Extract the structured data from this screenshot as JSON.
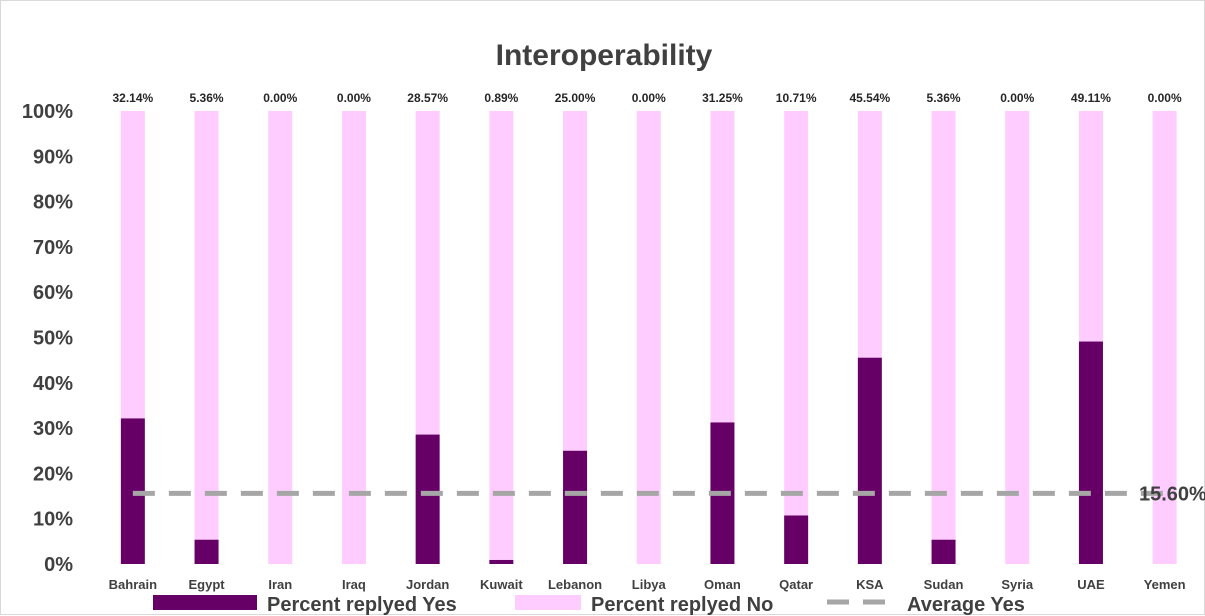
{
  "chart_data": {
    "type": "bar",
    "stacked": true,
    "title": "Interoperability",
    "categories": [
      "Bahrain",
      "Egypt",
      "Iran",
      "Iraq",
      "Jordan",
      "Kuwait",
      "Lebanon",
      "Libya",
      "Oman",
      "Qatar",
      "KSA",
      "Sudan",
      "Syria",
      "UAE",
      "Yemen"
    ],
    "series": [
      {
        "name": "Percent replyed Yes",
        "color": "#660066",
        "values": [
          32.14,
          5.36,
          0.0,
          0.0,
          28.57,
          0.89,
          25.0,
          0.0,
          31.25,
          10.71,
          45.54,
          5.36,
          0.0,
          49.11,
          0.0
        ]
      },
      {
        "name": "Percent replyed No",
        "color": "#ffccff",
        "values": [
          67.86,
          94.64,
          100.0,
          100.0,
          71.43,
          99.11,
          75.0,
          100.0,
          68.75,
          89.29,
          54.46,
          94.64,
          100.0,
          50.89,
          100.0
        ]
      }
    ],
    "data_labels": [
      "32.14%",
      "5.36%",
      "0.00%",
      "0.00%",
      "28.57%",
      "0.89%",
      "25.00%",
      "0.00%",
      "31.25%",
      "10.71%",
      "45.54%",
      "5.36%",
      "0.00%",
      "49.11%",
      "0.00%"
    ],
    "average_line": {
      "name": "Average Yes",
      "value": 15.6,
      "label": "15.60%",
      "color": "#a6a6a6",
      "style": "dashed"
    },
    "ylim": [
      0,
      100
    ],
    "yticks": [
      "0%",
      "10%",
      "20%",
      "30%",
      "40%",
      "50%",
      "60%",
      "70%",
      "80%",
      "90%",
      "100%"
    ],
    "xlabel": "",
    "ylabel": "",
    "grid": false,
    "legend": "bottom"
  }
}
